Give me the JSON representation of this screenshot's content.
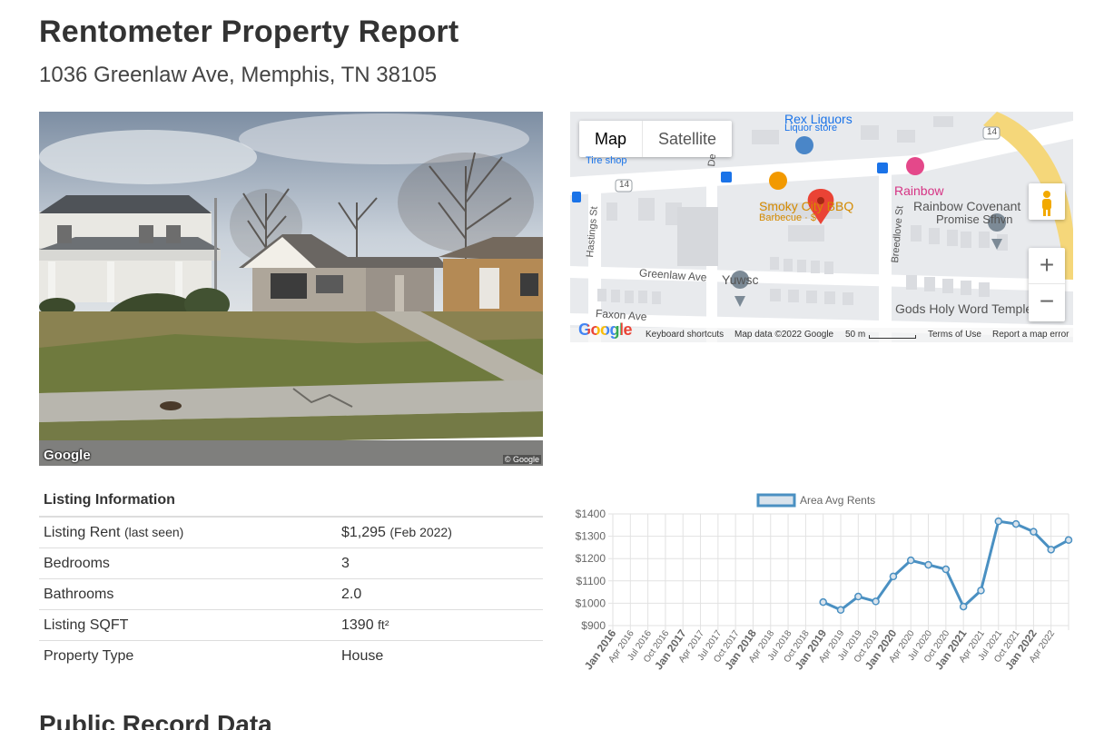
{
  "header": {
    "title": "Rentometer Property Report",
    "address": "1036 Greenlaw Ave, Memphis, TN 38105"
  },
  "photo": {
    "brand": "Google",
    "copyright": "© Google"
  },
  "map": {
    "tabs": {
      "map": "Map",
      "satellite": "Satellite"
    },
    "labels": {
      "rex_liquors": "Rex Liquors",
      "liquor_store": "Liquor store",
      "tire_shop": "Tire shop",
      "smoky_city": "Smoky City BBQ",
      "barbecue": "Barbecue · $",
      "rainbow": "Rainbow",
      "rainbow_covenant": "Rainbow Covenant",
      "promise": "Promise Sfhvn",
      "hastings": "Hastings St",
      "greenlaw": "Greenlaw Ave",
      "yuwsc": "Yuwsc",
      "breedlove": "Breedlove St",
      "gods_holy": "Gods Holy Word Temple",
      "faxon": "Faxon Ave",
      "route_14": "14",
      "route_14b": "14",
      "d_street": "De"
    },
    "zoom_in": "+",
    "zoom_out": "−",
    "footer": {
      "logo": "Google",
      "shortcuts": "Keyboard shortcuts",
      "map_data": "Map data ©2022 Google",
      "scale": "50 m",
      "terms": "Terms of Use",
      "report": "Report a map error"
    },
    "colors": {
      "pin": "#ea4335",
      "food": "#f29900",
      "poi_pink": "#e4488a",
      "poi_blue": "#4a86c8",
      "poi_gray": "#7c8a96",
      "highway": "#f5d77a"
    }
  },
  "listing": {
    "heading": "Listing Information",
    "rows": [
      {
        "key": "Listing Rent",
        "key_note": "(last seen)",
        "value": "$1,295",
        "value_note": "(Feb 2022)"
      },
      {
        "key": "Bedrooms",
        "key_note": "",
        "value": "3",
        "value_note": ""
      },
      {
        "key": "Bathrooms",
        "key_note": "",
        "value": "2.0",
        "value_note": ""
      },
      {
        "key": "Listing SQFT",
        "key_note": "",
        "value": "1390",
        "value_note": "ft²"
      },
      {
        "key": "Property Type",
        "key_note": "",
        "value": "House",
        "value_note": ""
      }
    ]
  },
  "chart_data": {
    "type": "line",
    "legend": "Area Avg Rents",
    "legend_position": "top",
    "grid": true,
    "ylim": [
      900,
      1400
    ],
    "y_ticks": [
      "$900",
      "$1000",
      "$1100",
      "$1200",
      "$1300",
      "$1400"
    ],
    "x_ticks": [
      {
        "label": "Jan 2016",
        "bold": true
      },
      {
        "label": "Apr 2016",
        "bold": false
      },
      {
        "label": "Jul 2016",
        "bold": false
      },
      {
        "label": "Oct 2016",
        "bold": false
      },
      {
        "label": "Jan 2017",
        "bold": true
      },
      {
        "label": "Apr 2017",
        "bold": false
      },
      {
        "label": "Jul 2017",
        "bold": false
      },
      {
        "label": "Oct 2017",
        "bold": false
      },
      {
        "label": "Jan 2018",
        "bold": true
      },
      {
        "label": "Apr 2018",
        "bold": false
      },
      {
        "label": "Jul 2018",
        "bold": false
      },
      {
        "label": "Oct 2018",
        "bold": false
      },
      {
        "label": "Jan 2019",
        "bold": true
      },
      {
        "label": "Apr 2019",
        "bold": false
      },
      {
        "label": "Jul 2019",
        "bold": false
      },
      {
        "label": "Oct 2019",
        "bold": false
      },
      {
        "label": "Jan 2020",
        "bold": true
      },
      {
        "label": "Apr 2020",
        "bold": false
      },
      {
        "label": "Jul 2020",
        "bold": false
      },
      {
        "label": "Oct 2020",
        "bold": false
      },
      {
        "label": "Jan 2021",
        "bold": true
      },
      {
        "label": "Apr 2021",
        "bold": false
      },
      {
        "label": "Jul 2021",
        "bold": false
      },
      {
        "label": "Oct 2021",
        "bold": false
      },
      {
        "label": "Jan 2022",
        "bold": true
      },
      {
        "label": "Apr 2022",
        "bold": false
      }
    ],
    "series": [
      {
        "name": "Area Avg Rents",
        "color": "#4a90c2",
        "points": [
          {
            "x": "Jan 2019",
            "y": 1005
          },
          {
            "x": "Apr 2019",
            "y": 970
          },
          {
            "x": "Jul 2019",
            "y": 1030
          },
          {
            "x": "Oct 2019",
            "y": 1008
          },
          {
            "x": "Jan 2020",
            "y": 1120
          },
          {
            "x": "Apr 2020",
            "y": 1192
          },
          {
            "x": "Jul 2020",
            "y": 1172
          },
          {
            "x": "Oct 2020",
            "y": 1152
          },
          {
            "x": "Jan 2021",
            "y": 985
          },
          {
            "x": "Apr 2021",
            "y": 1057
          },
          {
            "x": "Jul 2021",
            "y": 1367
          },
          {
            "x": "Oct 2021",
            "y": 1355
          },
          {
            "x": "Jan 2022",
            "y": 1320
          },
          {
            "x": "Apr 2022",
            "y": 1240
          },
          {
            "x": "Jul 2022",
            "y": 1283
          }
        ]
      }
    ]
  },
  "public_record": {
    "heading": "Public Record Data"
  }
}
